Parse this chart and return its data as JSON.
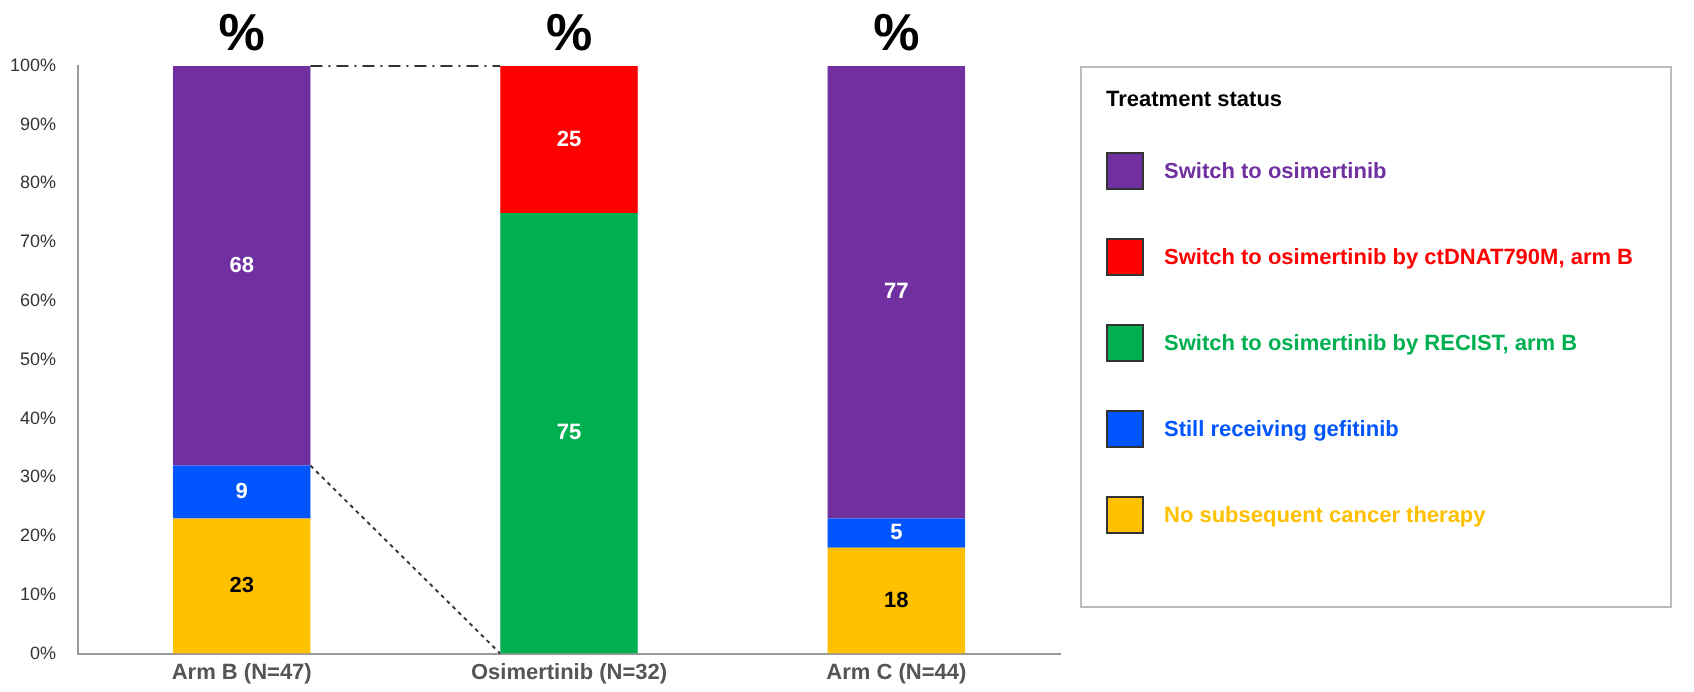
{
  "chart_data": {
    "type": "bar",
    "stacked": true,
    "categories": [
      "Arm B (N=47)",
      "Osimertinib (N=32)",
      "Arm C (N=44)"
    ],
    "series": [
      {
        "name": "No subsequent cancer therapy",
        "color": "#ffc000",
        "values": [
          23,
          null,
          18
        ]
      },
      {
        "name": "Still receiving gefitinib",
        "color": "#0055ff",
        "values": [
          9,
          null,
          5
        ]
      },
      {
        "name": "Switch to osimertinib by RECIST, arm B",
        "color": "#00b050",
        "values": [
          null,
          75,
          null
        ]
      },
      {
        "name": "Switch to osimertinib by ctDNAT790M, arm B",
        "color": "#ff0000",
        "values": [
          null,
          25,
          null
        ]
      },
      {
        "name": "Switch to osimertinib",
        "color": "#7030a0",
        "values": [
          68,
          null,
          77
        ]
      }
    ],
    "ylim": [
      0,
      100
    ],
    "yticks": [
      {
        "value": 0,
        "label": "0%"
      },
      {
        "value": 10,
        "label": "10%"
      },
      {
        "value": 20,
        "label": "20%"
      },
      {
        "value": 30,
        "label": "30%"
      },
      {
        "value": 40,
        "label": "40%"
      },
      {
        "value": 50,
        "label": "50%"
      },
      {
        "value": 60,
        "label": "60%"
      },
      {
        "value": 70,
        "label": "70%"
      },
      {
        "value": 80,
        "label": "80%"
      },
      {
        "value": 90,
        "label": "90%"
      },
      {
        "value": 100,
        "label": "100%"
      }
    ],
    "grid": false,
    "legend": "right",
    "legend_title": "Treatment status",
    "data_labels": true,
    "annotations": [
      {
        "text": "%",
        "x": "Arm B (N=47)",
        "y": 100
      },
      {
        "text": "%",
        "x": "Osimertinib (N=32)",
        "y": 100
      },
      {
        "text": "%",
        "x": "Arm C (N=44)",
        "y": 100
      }
    ]
  }
}
